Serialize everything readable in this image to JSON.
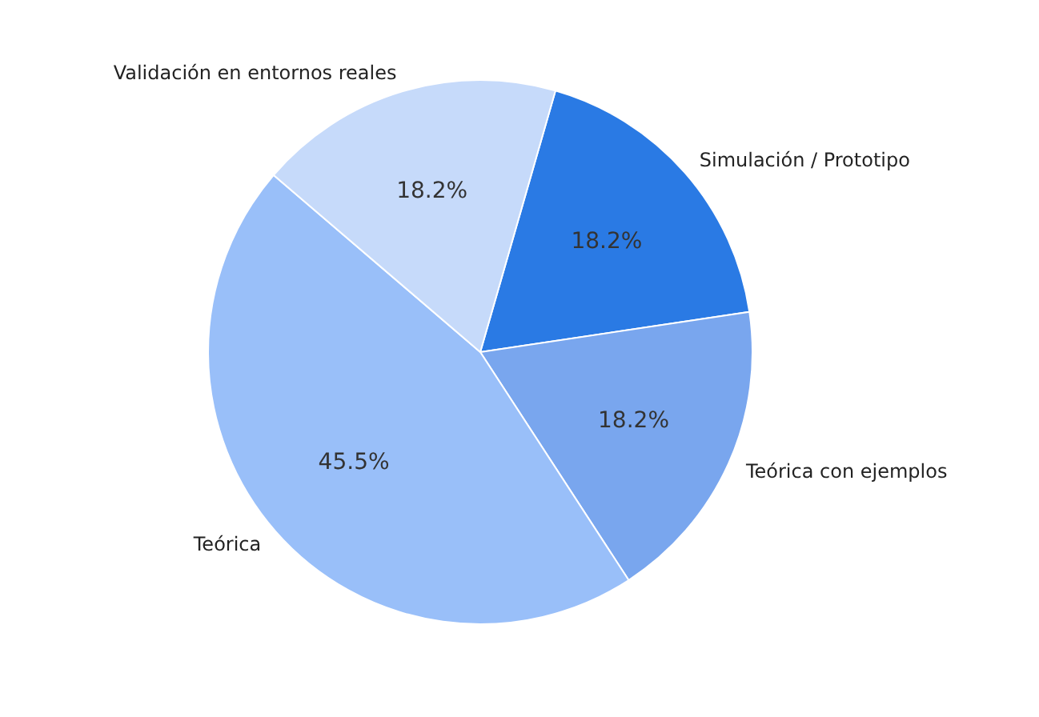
{
  "chart_data": {
    "type": "pie",
    "categories": [
      "Simulación / Prototipo",
      "Teórica con ejemplos",
      "Teórica",
      "Validación en entornos reales"
    ],
    "values": [
      18.2,
      18.2,
      45.5,
      18.2
    ],
    "value_labels": [
      "18.2%",
      "18.2%",
      "45.5%",
      "18.2%"
    ],
    "colors": [
      "#2a7ae4",
      "#79a6ee",
      "#99bff9",
      "#c6dafa"
    ],
    "legend": false
  }
}
